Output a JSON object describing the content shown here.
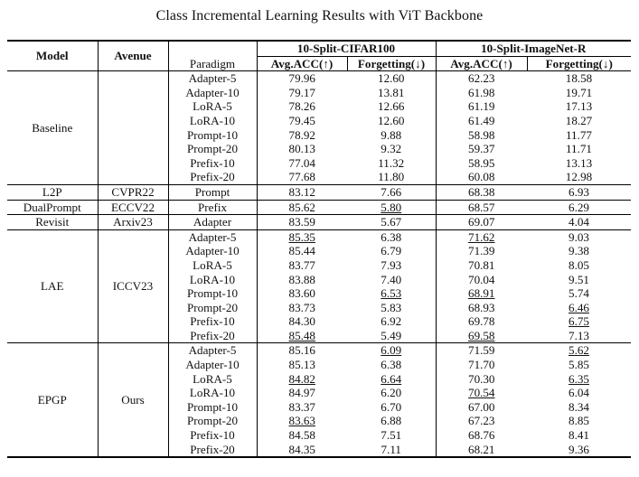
{
  "caption": "Class Incremental Learning Results with ViT Backbone",
  "headers": {
    "model": "Model",
    "avenue": "Avenue",
    "paradigm": "Paradigm",
    "dataset_a": "10-Split-CIFAR100",
    "dataset_b": "10-Split-ImageNet-R",
    "metric_acc": "Avg.ACC(↑)",
    "metric_forget": "Forgetting(↓)"
  },
  "groups": [
    {
      "model": "Baseline",
      "avenue": "",
      "rows": [
        {
          "paradigm": "Adapter-5",
          "cells": [
            {
              "v": "79.96"
            },
            {
              "v": "12.60"
            },
            {
              "v": "62.23"
            },
            {
              "v": "18.58"
            }
          ]
        },
        {
          "paradigm": "Adapter-10",
          "cells": [
            {
              "v": "79.17"
            },
            {
              "v": "13.81"
            },
            {
              "v": "61.98"
            },
            {
              "v": "19.71"
            }
          ]
        },
        {
          "paradigm": "LoRA-5",
          "cells": [
            {
              "v": "78.26"
            },
            {
              "v": "12.66"
            },
            {
              "v": "61.19"
            },
            {
              "v": "17.13"
            }
          ]
        },
        {
          "paradigm": "LoRA-10",
          "cells": [
            {
              "v": "79.45"
            },
            {
              "v": "12.60"
            },
            {
              "v": "61.49"
            },
            {
              "v": "18.27"
            }
          ]
        },
        {
          "paradigm": "Prompt-10",
          "cells": [
            {
              "v": "78.92"
            },
            {
              "v": "9.88"
            },
            {
              "v": "58.98"
            },
            {
              "v": "11.77"
            }
          ]
        },
        {
          "paradigm": "Prompt-20",
          "cells": [
            {
              "v": "80.13"
            },
            {
              "v": "9.32"
            },
            {
              "v": "59.37"
            },
            {
              "v": "11.71"
            }
          ]
        },
        {
          "paradigm": "Prefix-10",
          "cells": [
            {
              "v": "77.04"
            },
            {
              "v": "11.32"
            },
            {
              "v": "58.95"
            },
            {
              "v": "13.13"
            }
          ]
        },
        {
          "paradigm": "Prefix-20",
          "cells": [
            {
              "v": "77.68"
            },
            {
              "v": "11.80"
            },
            {
              "v": "60.08"
            },
            {
              "v": "12.98"
            }
          ]
        }
      ]
    },
    {
      "model": "L2P",
      "avenue": "CVPR22",
      "rows": [
        {
          "paradigm": "Prompt",
          "cells": [
            {
              "v": "83.12"
            },
            {
              "v": "7.66"
            },
            {
              "v": "68.38"
            },
            {
              "v": "6.93"
            }
          ]
        }
      ]
    },
    {
      "model": "DualPrompt",
      "avenue": "ECCV22",
      "rows": [
        {
          "paradigm": "Prefix",
          "cells": [
            {
              "v": "85.62",
              "s": "b"
            },
            {
              "v": "5.80",
              "s": "u"
            },
            {
              "v": "68.57"
            },
            {
              "v": "6.29",
              "s": "b"
            }
          ]
        }
      ]
    },
    {
      "model": "Revisit",
      "avenue": "Arxiv23",
      "rows": [
        {
          "paradigm": "Adapter",
          "cells": [
            {
              "v": "83.59"
            },
            {
              "v": "5.67",
              "s": "b"
            },
            {
              "v": "69.07"
            },
            {
              "v": "4.04",
              "s": "b"
            }
          ]
        }
      ]
    },
    {
      "model": "LAE",
      "avenue": "ICCV23",
      "rows": [
        {
          "paradigm": "Adapter-5",
          "cells": [
            {
              "v": "85.35",
              "s": "u"
            },
            {
              "v": "6.38"
            },
            {
              "v": "71.62",
              "s": "u"
            },
            {
              "v": "9.03"
            }
          ]
        },
        {
          "paradigm": "Adapter-10",
          "cells": [
            {
              "v": "85.44",
              "s": "b"
            },
            {
              "v": "6.79"
            },
            {
              "v": "71.39"
            },
            {
              "v": "9.38"
            }
          ]
        },
        {
          "paradigm": "LoRA-5",
          "cells": [
            {
              "v": "83.77"
            },
            {
              "v": "7.93"
            },
            {
              "v": "70.81",
              "s": "b"
            },
            {
              "v": "8.05"
            }
          ]
        },
        {
          "paradigm": "LoRA-10",
          "cells": [
            {
              "v": "83.88"
            },
            {
              "v": "7.40"
            },
            {
              "v": "70.04"
            },
            {
              "v": "9.51"
            }
          ]
        },
        {
          "paradigm": "Prompt-10",
          "cells": [
            {
              "v": "83.60"
            },
            {
              "v": "6.53",
              "s": "u"
            },
            {
              "v": "68.91",
              "s": "u"
            },
            {
              "v": "5.74",
              "s": "b"
            }
          ]
        },
        {
          "paradigm": "Prompt-20",
          "cells": [
            {
              "v": "83.73",
              "s": "b"
            },
            {
              "v": "5.83",
              "s": "b"
            },
            {
              "v": "68.93",
              "s": "b"
            },
            {
              "v": "6.46",
              "s": "u"
            }
          ]
        },
        {
          "paradigm": "Prefix-10",
          "cells": [
            {
              "v": "84.30"
            },
            {
              "v": "6.92"
            },
            {
              "v": "69.78",
              "s": "b"
            },
            {
              "v": "6.75",
              "s": "u"
            }
          ]
        },
        {
          "paradigm": "Prefix-20",
          "cells": [
            {
              "v": "85.48",
              "s": "u"
            },
            {
              "v": "5.49",
              "s": "b"
            },
            {
              "v": "69.58",
              "s": "u"
            },
            {
              "v": "7.13"
            }
          ]
        }
      ]
    },
    {
      "model": "EPGP",
      "avenue": "Ours",
      "rows": [
        {
          "paradigm": "Adapter-5",
          "cells": [
            {
              "v": "85.16"
            },
            {
              "v": "6.09",
              "s": "u"
            },
            {
              "v": "71.59"
            },
            {
              "v": "5.62",
              "s": "u"
            }
          ]
        },
        {
          "paradigm": "Adapter-10",
          "cells": [
            {
              "v": "85.13"
            },
            {
              "v": "6.38"
            },
            {
              "v": "71.70",
              "s": "b"
            },
            {
              "v": "5.85"
            }
          ]
        },
        {
          "paradigm": "LoRA-5",
          "cells": [
            {
              "v": "84.82",
              "s": "u"
            },
            {
              "v": "6.64",
              "s": "u"
            },
            {
              "v": "70.30"
            },
            {
              "v": "6.35",
              "s": "u"
            }
          ]
        },
        {
          "paradigm": "LoRA-10",
          "cells": [
            {
              "v": "84.97",
              "s": "b"
            },
            {
              "v": "6.20",
              "s": "b"
            },
            {
              "v": "70.54",
              "s": "u"
            },
            {
              "v": "6.04",
              "s": "b"
            }
          ]
        },
        {
          "paradigm": "Prompt-10",
          "cells": [
            {
              "v": "83.37"
            },
            {
              "v": "6.70"
            },
            {
              "v": "67.00"
            },
            {
              "v": "8.34"
            }
          ]
        },
        {
          "paradigm": "Prompt-20",
          "cells": [
            {
              "v": "83.63",
              "s": "u"
            },
            {
              "v": "6.88"
            },
            {
              "v": "67.23"
            },
            {
              "v": "8.85"
            }
          ]
        },
        {
          "paradigm": "Prefix-10",
          "cells": [
            {
              "v": "84.58"
            },
            {
              "v": "7.51"
            },
            {
              "v": "68.76"
            },
            {
              "v": "8.41"
            }
          ]
        },
        {
          "paradigm": "Prefix-20",
          "cells": [
            {
              "v": "84.35"
            },
            {
              "v": "7.11"
            },
            {
              "v": "68.21"
            },
            {
              "v": "9.36"
            }
          ]
        }
      ]
    }
  ]
}
